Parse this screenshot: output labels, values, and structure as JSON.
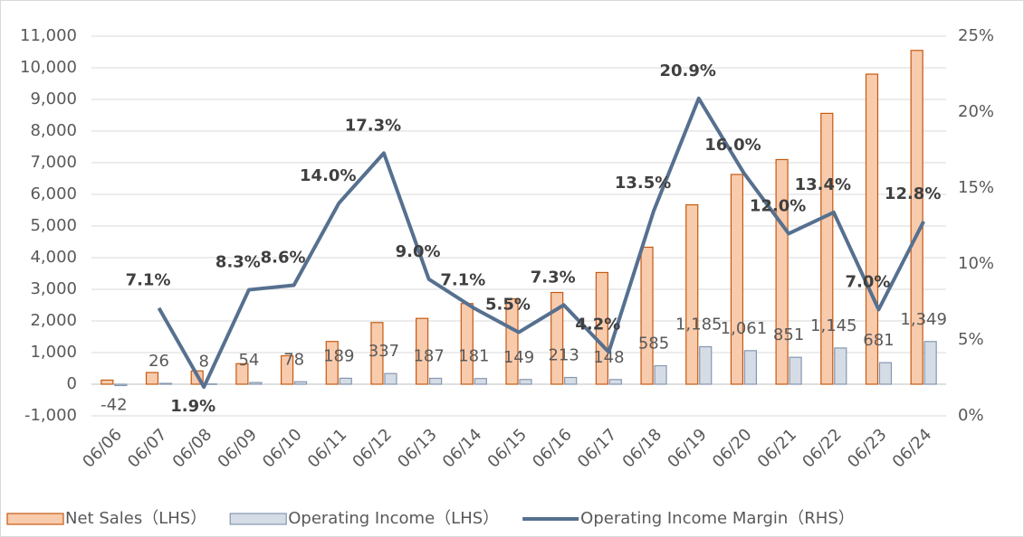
{
  "chart_data": {
    "type": "bar-line",
    "categories": [
      "06/06",
      "06/07",
      "06/08",
      "06/09",
      "06/10",
      "06/11",
      "06/12",
      "06/13",
      "06/14",
      "06/15",
      "06/16",
      "06/17",
      "06/18",
      "06/19",
      "06/20",
      "06/21",
      "06/22",
      "06/23",
      "06/24"
    ],
    "series": [
      {
        "name": "Net Sales（LHS）",
        "type": "bar",
        "color": "#f8cbad",
        "stroke": "#c55a11",
        "values": [
          130,
          370,
          420,
          650,
          900,
          1350,
          1950,
          2080,
          2550,
          2700,
          2900,
          3530,
          4330,
          5670,
          6630,
          7100,
          8560,
          9800,
          10550
        ]
      },
      {
        "name": "Operating Income（LHS）",
        "type": "bar",
        "color": "#d6dce5",
        "stroke": "#8497b0",
        "values": [
          -42,
          26,
          8,
          54,
          78,
          189,
          337,
          187,
          181,
          149,
          213,
          148,
          585,
          1185,
          1061,
          851,
          1145,
          681,
          1349
        ],
        "value_labels": [
          "-42",
          "26",
          "8",
          "54",
          "78",
          "189",
          "337",
          "187",
          "181",
          "149",
          "213",
          "148",
          "585",
          "1,185",
          "1,061",
          "851",
          "1,145",
          "681",
          "1,349"
        ]
      },
      {
        "name": "Operating Income Margin（RHS）",
        "type": "line",
        "axis": "y2",
        "color": "#56708f",
        "values": [
          null,
          7.1,
          1.9,
          8.3,
          8.6,
          14.0,
          17.3,
          9.0,
          7.1,
          5.5,
          7.3,
          4.2,
          13.5,
          20.9,
          16.0,
          12.0,
          13.4,
          7.0,
          12.8
        ],
        "value_labels": [
          null,
          "7.1%",
          "1.9%",
          "8.3%",
          "8.6%",
          "14.0%",
          "17.3%",
          "9.0%",
          "7.1%",
          "5.5%",
          "7.3%",
          "4.2%",
          "13.5%",
          "20.9%",
          "16.0%",
          "12.0%",
          "13.4%",
          "7.0%",
          "12.8%"
        ]
      }
    ],
    "ylim": [
      -1000,
      11000
    ],
    "yticks": [
      {
        "value": -1000,
        "label": "-1,000"
      },
      0,
      {
        "value": 1000,
        "label": "1,000"
      },
      {
        "value": 2000,
        "label": "2,000"
      },
      {
        "value": 3000,
        "label": "3,000"
      },
      {
        "value": 4000,
        "label": "4,000"
      },
      {
        "value": 5000,
        "label": "5,000"
      },
      {
        "value": 6000,
        "label": "6,000"
      },
      {
        "value": 7000,
        "label": "7,000"
      },
      {
        "value": 8000,
        "label": "8,000"
      },
      {
        "value": 9000,
        "label": "9,000"
      },
      {
        "value": 10000,
        "label": "10,000"
      },
      {
        "value": 11000,
        "label": "11,000"
      }
    ],
    "y2lim": [
      0,
      25
    ],
    "y2ticks": [
      {
        "value": 0,
        "label": "0%"
      },
      {
        "value": 5,
        "label": "5%"
      },
      {
        "value": 10,
        "label": "10%"
      },
      {
        "value": 15,
        "label": "15%"
      },
      {
        "value": 20,
        "label": "20%"
      },
      {
        "value": 25,
        "label": "25%"
      }
    ],
    "grid": true,
    "legend": "bottom"
  }
}
